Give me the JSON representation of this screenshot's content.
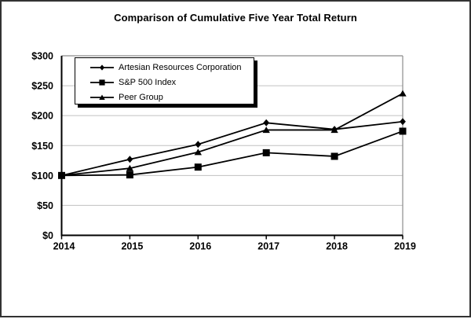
{
  "chart_data": {
    "type": "line",
    "title": "Comparison of Cumulative Five Year Total Return",
    "x": [
      "2014",
      "2015",
      "2016",
      "2017",
      "2018",
      "2019"
    ],
    "series": [
      {
        "name": "Artesian Resources Corporation",
        "marker": "diamond",
        "values": [
          100,
          127,
          152,
          188,
          177,
          190
        ]
      },
      {
        "name": "S&P 500 Index",
        "marker": "square",
        "values": [
          100,
          101,
          114,
          138,
          132,
          174
        ]
      },
      {
        "name": "Peer Group",
        "marker": "triangle",
        "values": [
          100,
          112,
          139,
          176,
          176,
          237
        ]
      }
    ],
    "ylim": [
      0,
      300
    ],
    "y_tick_step": 50,
    "y_tick_labels": [
      "$0",
      "$50",
      "$100",
      "$150",
      "$200",
      "$250",
      "$300"
    ],
    "xlabel": "",
    "ylabel": "",
    "grid": true,
    "legend_position": "top-left-inside",
    "colors": {
      "series": "#000000",
      "grid": "#c0c0c0",
      "frame": "#8c8c8c",
      "axis": "#000000",
      "background": "#ffffff"
    }
  }
}
